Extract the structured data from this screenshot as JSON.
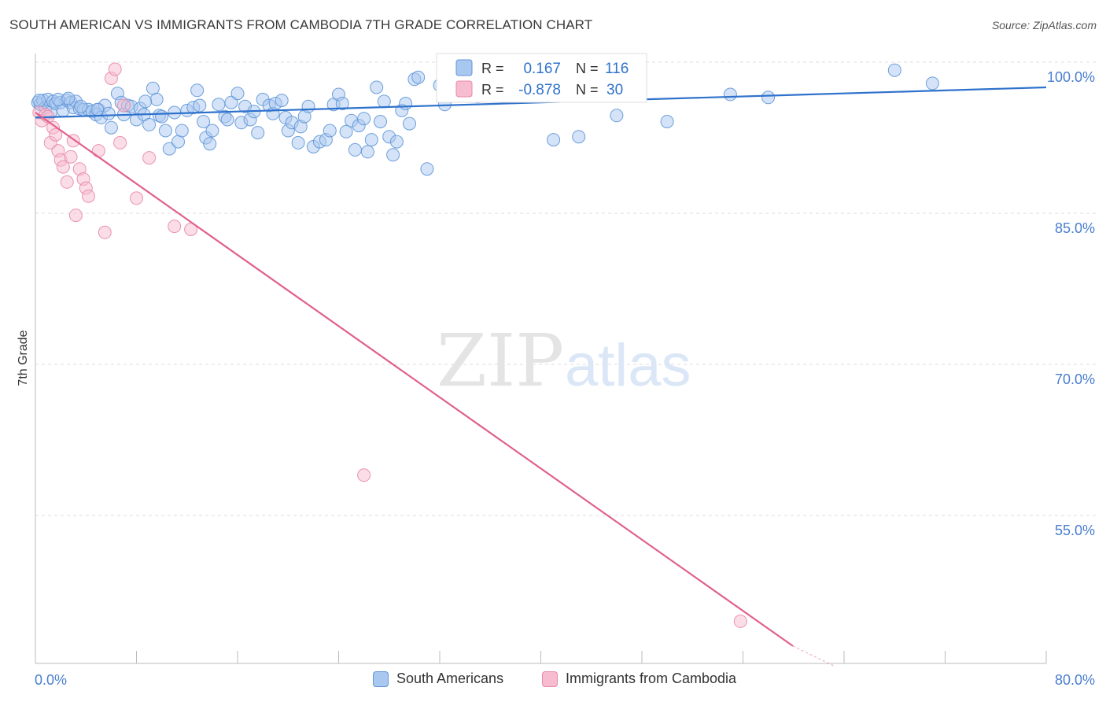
{
  "title": "SOUTH AMERICAN VS IMMIGRANTS FROM CAMBODIA 7TH GRADE CORRELATION CHART",
  "source": "Source: ZipAtlas.com",
  "watermark": {
    "zip": "ZIP",
    "atlas": "atlas"
  },
  "colors": {
    "blue_fill": "#a9c8ef",
    "blue_stroke": "#5f96d8",
    "blue_line": "#2f72cc",
    "pink_fill": "#f7bcd0",
    "pink_stroke": "#e78aa8",
    "pink_line": "#e0608e",
    "axis_text": "#4a7fcf",
    "grid": "#dddddd"
  },
  "legend_top": {
    "rows": [
      {
        "r_label": "R =",
        "r_value": "0.167",
        "n_label": "N =",
        "n_value": "116"
      },
      {
        "r_label": "R =",
        "r_value": "-0.878",
        "n_label": "N =",
        "n_value": "30"
      }
    ]
  },
  "legend_bottom": {
    "items": [
      "South Americans",
      "Immigrants from Cambodia"
    ]
  },
  "chart_data": {
    "type": "scatter",
    "title": "SOUTH AMERICAN VS IMMIGRANTS FROM CAMBODIA 7TH GRADE CORRELATION CHART",
    "xlabel": "",
    "ylabel": "7th Grade",
    "xlim": [
      0,
      80
    ],
    "ylim": [
      42,
      101.5
    ],
    "x_tick_labels": [
      "0.0%",
      "80.0%"
    ],
    "y_ticks": [
      55,
      70,
      85,
      100
    ],
    "y_tick_labels": [
      "55.0%",
      "70.0%",
      "85.0%",
      "100.0%"
    ],
    "grid": "horizontal dashed",
    "legend_position": "top-center",
    "series": [
      {
        "name": "South Americans",
        "r": 0.167,
        "n": 116,
        "trend": {
          "x": [
            0,
            80
          ],
          "y": [
            94.5,
            97.5
          ]
        },
        "points": [
          [
            0.2,
            96.0
          ],
          [
            0.4,
            95.8
          ],
          [
            0.6,
            96.2
          ],
          [
            0.8,
            95.5
          ],
          [
            1.0,
            96.3
          ],
          [
            1.2,
            95.0
          ],
          [
            1.4,
            96.1
          ],
          [
            1.6,
            95.9
          ],
          [
            2.0,
            96.0
          ],
          [
            2.2,
            95.2
          ],
          [
            2.5,
            96.2
          ],
          [
            2.8,
            96.0
          ],
          [
            3.0,
            95.5
          ],
          [
            3.2,
            96.1
          ],
          [
            3.5,
            95.4
          ],
          [
            3.8,
            95.3
          ],
          [
            4.2,
            95.3
          ],
          [
            4.5,
            95.1
          ],
          [
            4.8,
            94.8
          ],
          [
            5.0,
            95.3
          ],
          [
            5.2,
            94.5
          ],
          [
            5.5,
            95.7
          ],
          [
            5.8,
            94.9
          ],
          [
            6.0,
            93.5
          ],
          [
            6.5,
            96.9
          ],
          [
            6.8,
            96.0
          ],
          [
            7.0,
            94.8
          ],
          [
            7.3,
            95.7
          ],
          [
            7.6,
            95.6
          ],
          [
            8.0,
            94.3
          ],
          [
            8.3,
            95.4
          ],
          [
            8.6,
            94.8
          ],
          [
            9.0,
            93.8
          ],
          [
            9.3,
            97.4
          ],
          [
            9.6,
            96.3
          ],
          [
            9.8,
            94.7
          ],
          [
            10.0,
            94.6
          ],
          [
            10.3,
            93.2
          ],
          [
            10.6,
            91.4
          ],
          [
            11.0,
            95.0
          ],
          [
            11.3,
            92.1
          ],
          [
            11.6,
            93.2
          ],
          [
            12.0,
            95.2
          ],
          [
            12.5,
            95.5
          ],
          [
            12.8,
            97.2
          ],
          [
            13.0,
            95.7
          ],
          [
            13.3,
            94.1
          ],
          [
            13.5,
            92.5
          ],
          [
            13.8,
            91.9
          ],
          [
            14.0,
            93.2
          ],
          [
            14.5,
            95.8
          ],
          [
            15.0,
            94.6
          ],
          [
            15.2,
            94.3
          ],
          [
            15.5,
            96.0
          ],
          [
            16.0,
            96.9
          ],
          [
            16.3,
            94.0
          ],
          [
            16.6,
            95.6
          ],
          [
            17.0,
            94.3
          ],
          [
            17.3,
            95.1
          ],
          [
            17.6,
            93.0
          ],
          [
            18.0,
            96.3
          ],
          [
            18.5,
            95.7
          ],
          [
            18.8,
            94.9
          ],
          [
            19.0,
            95.9
          ],
          [
            19.5,
            96.2
          ],
          [
            19.8,
            94.5
          ],
          [
            20.0,
            93.2
          ],
          [
            20.3,
            94.0
          ],
          [
            20.8,
            92.0
          ],
          [
            21.0,
            93.6
          ],
          [
            21.3,
            94.6
          ],
          [
            21.6,
            95.6
          ],
          [
            22.0,
            91.6
          ],
          [
            22.5,
            92.1
          ],
          [
            23.0,
            92.3
          ],
          [
            23.3,
            93.2
          ],
          [
            23.6,
            95.8
          ],
          [
            24.0,
            96.8
          ],
          [
            24.3,
            95.9
          ],
          [
            24.6,
            93.1
          ],
          [
            25.0,
            94.2
          ],
          [
            25.3,
            91.3
          ],
          [
            25.6,
            93.7
          ],
          [
            26.0,
            94.4
          ],
          [
            26.3,
            91.1
          ],
          [
            26.6,
            92.3
          ],
          [
            27.0,
            97.5
          ],
          [
            27.3,
            94.1
          ],
          [
            27.6,
            96.1
          ],
          [
            28.0,
            92.6
          ],
          [
            28.3,
            90.8
          ],
          [
            28.6,
            92.1
          ],
          [
            29.0,
            95.2
          ],
          [
            29.3,
            95.9
          ],
          [
            29.6,
            93.9
          ],
          [
            30.0,
            98.3
          ],
          [
            30.3,
            98.5
          ],
          [
            31.0,
            89.4
          ],
          [
            32.0,
            97.7
          ],
          [
            32.4,
            95.8
          ],
          [
            33.0,
            97.3
          ],
          [
            33.5,
            99.5
          ],
          [
            34.0,
            98.9
          ],
          [
            35.0,
            96.6
          ],
          [
            36.0,
            97.4
          ],
          [
            37.5,
            97.9
          ],
          [
            38.0,
            98.3
          ],
          [
            39.0,
            97.7
          ],
          [
            39.6,
            98.0
          ],
          [
            41.0,
            92.3
          ],
          [
            42.0,
            98.2
          ],
          [
            43.0,
            92.6
          ],
          [
            46.0,
            94.7
          ],
          [
            50.0,
            94.1
          ],
          [
            55.0,
            96.8
          ],
          [
            58.0,
            96.5
          ],
          [
            68.0,
            99.2
          ],
          [
            71.0,
            97.9
          ],
          [
            0.3,
            96.2
          ],
          [
            1.8,
            96.3
          ],
          [
            2.6,
            96.4
          ],
          [
            3.6,
            95.6
          ],
          [
            4.9,
            95.3
          ],
          [
            8.7,
            96.1
          ]
        ]
      },
      {
        "name": "Immigrants from Cambodia",
        "r": -0.878,
        "n": 30,
        "trend": {
          "x": [
            0,
            60
          ],
          "y": [
            95.0,
            42.0
          ]
        },
        "points": [
          [
            0.3,
            95.0
          ],
          [
            0.5,
            94.2
          ],
          [
            0.8,
            94.8
          ],
          [
            1.0,
            94.6
          ],
          [
            1.2,
            92.0
          ],
          [
            1.4,
            93.5
          ],
          [
            1.6,
            92.8
          ],
          [
            1.8,
            91.2
          ],
          [
            2.0,
            90.3
          ],
          [
            2.2,
            89.6
          ],
          [
            2.5,
            88.1
          ],
          [
            2.8,
            90.6
          ],
          [
            3.0,
            92.2
          ],
          [
            3.2,
            84.8
          ],
          [
            3.5,
            89.4
          ],
          [
            3.8,
            88.4
          ],
          [
            4.0,
            87.5
          ],
          [
            4.2,
            86.7
          ],
          [
            5.0,
            91.2
          ],
          [
            5.5,
            83.1
          ],
          [
            6.0,
            98.4
          ],
          [
            6.3,
            99.3
          ],
          [
            6.7,
            92.0
          ],
          [
            7.0,
            95.7
          ],
          [
            8.0,
            86.5
          ],
          [
            9.0,
            90.5
          ],
          [
            11.0,
            83.7
          ],
          [
            12.3,
            83.4
          ],
          [
            26.0,
            59.0
          ],
          [
            55.8,
            44.5
          ]
        ]
      }
    ]
  }
}
